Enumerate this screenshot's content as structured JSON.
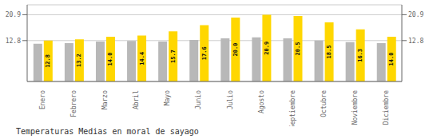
{
  "chart_data": {
    "type": "bar",
    "title": "Temperaturas Medias en moral de sayago",
    "categories": [
      "Enero",
      "Febrero",
      "Marzo",
      "Abril",
      "Mayo",
      "Junio",
      "Julio",
      "Agosto",
      "Septiembre",
      "Octubre",
      "Noviembre",
      "Diciembre"
    ],
    "series": [
      {
        "color": "#B8B8B8",
        "values": [
          11.8,
          12.0,
          12.5,
          12.7,
          12.5,
          13.0,
          13.5,
          13.8,
          13.5,
          12.8,
          12.3,
          12.0
        ]
      },
      {
        "color": "#FFD700",
        "values": [
          12.8,
          13.2,
          14.0,
          14.4,
          15.7,
          17.6,
          20.0,
          20.9,
          20.5,
          18.5,
          16.3,
          14.0
        ],
        "data_labels": true,
        "value_labels": [
          "12.8",
          "13.2",
          "14.0",
          "14.4",
          "15.7",
          "17.6",
          "20.0",
          "20.9",
          "20.5",
          "18.5",
          "16.3",
          "14.0"
        ]
      }
    ],
    "ylim": [
      0,
      24.0
    ],
    "yticks": [
      12.8,
      20.9
    ],
    "y2lim": [
      0,
      24.0
    ],
    "y2ticks": [
      12.8,
      20.9
    ],
    "grid": true
  }
}
